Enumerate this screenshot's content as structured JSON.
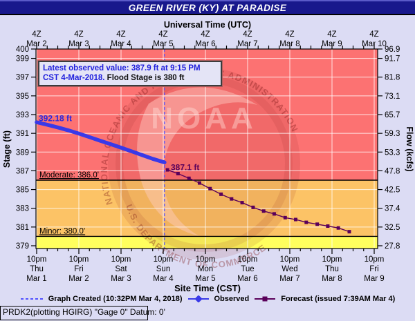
{
  "title": "GREEN RIVER (KY) AT PARADISE",
  "top_axis": {
    "label": "Universal Time (UTC)",
    "hour_label": "4Z",
    "ticks": [
      "Mar 2",
      "Mar 3",
      "Mar 4",
      "Mar 5",
      "Mar 6",
      "Mar 7",
      "Mar 8",
      "Mar 9",
      "Mar 10"
    ]
  },
  "bottom_axis": {
    "label": "Site Time (CST)",
    "time_label": "10pm",
    "ticks": [
      {
        "day": "Thu",
        "date": "Mar 1"
      },
      {
        "day": "Fri",
        "date": "Mar 2"
      },
      {
        "day": "Sat",
        "date": "Mar 3"
      },
      {
        "day": "Sun",
        "date": "Mar 4"
      },
      {
        "day": "Mon",
        "date": "Mar 5"
      },
      {
        "day": "Tue",
        "date": "Mar 6"
      },
      {
        "day": "Wed",
        "date": "Mar 7"
      },
      {
        "day": "Thu",
        "date": "Mar 8"
      },
      {
        "day": "Fri",
        "date": "Mar 9"
      }
    ]
  },
  "left_axis": {
    "label": "Stage (ft)",
    "ticks": [
      400,
      399,
      397,
      395,
      393,
      391,
      389,
      387,
      385,
      383,
      381,
      379
    ]
  },
  "right_axis": {
    "label": "Flow (kcfs)",
    "ticks": [
      "96.9",
      "91.7",
      "81.8",
      "73.1",
      "65.7",
      "59.3",
      "53.3",
      "47.8",
      "42.5",
      "37.4",
      "32.5",
      "27.8"
    ]
  },
  "annotation": {
    "line1": "Latest observed value: 387.9 ft at 9:15 PM",
    "line2_blue": "CST 4-Mar-2018.",
    "line2_black": " Flood Stage is 380 ft"
  },
  "labels": {
    "observed_start": "392.18 ft",
    "forecast_start": "387.1 ft",
    "moderate": "Moderate: 386.0'",
    "minor": "Minor: 380.0'"
  },
  "legend": [
    {
      "name": "graph-created",
      "label": "Graph Created (10:32PM Mar 4, 2018)"
    },
    {
      "name": "observed",
      "label": "Observed"
    },
    {
      "name": "forecast",
      "label": "Forecast (issued 7:39AM Mar 4)"
    }
  ],
  "status_bar": "PRDK2(plotting HGIRG) \"Gage 0\" Datum: 0'",
  "watermark": {
    "ring_top": "NATIONAL OCEANIC AND ATMOSPHERIC ADMINISTRATION",
    "ring_bottom": "U.S. DEPARTMENT OF COMMERCE",
    "center": "NOAA"
  },
  "colors": {
    "background": "#dcdcf4",
    "title_bar": "#18188c",
    "moderate_zone": "#fc7272",
    "minor_zone": "#fcc366",
    "action_zone": "#ffff5e",
    "observed": "#3939e8",
    "forecast": "#5a005a",
    "created_line": "#5151ff",
    "annotation_blue": "#2020dd",
    "gridline": "#ffffff"
  },
  "chart_data": {
    "type": "line",
    "title": "GREEN RIVER (KY) AT PARADISE",
    "x_unit": "days since 10pm CST Mar 1 2018",
    "xlabel_top": "Universal Time (UTC)",
    "xlabel_bottom": "Site Time (CST)",
    "ylabel_left": "Stage (ft)",
    "ylabel_right": "Flow (kcfs)",
    "stage_range": [
      379,
      400
    ],
    "stage_ticks": [
      400,
      399,
      397,
      395,
      393,
      391,
      389,
      387,
      385,
      383,
      381,
      379
    ],
    "flow_tick_labels": [
      "96.9",
      "91.7",
      "81.8",
      "73.1",
      "65.7",
      "59.3",
      "53.3",
      "47.8",
      "42.5",
      "37.4",
      "32.5",
      "27.8"
    ],
    "grid": true,
    "flood_zones": [
      {
        "name": "moderate-flood",
        "from": 386,
        "to": 400,
        "color": "#fc7272"
      },
      {
        "name": "minor-flood",
        "from": 380,
        "to": 386,
        "color": "#fcc366"
      },
      {
        "name": "action",
        "from": 379,
        "to": 380,
        "color": "#ffff5e"
      }
    ],
    "flood_stage_ft": 380,
    "moderate_stage_ft": 386,
    "latest_observed": {
      "stage_ft": 387.9,
      "time": "9:15 PM CST 4-Mar-2018"
    },
    "graph_created_x": 3.03,
    "series": [
      {
        "name": "Observed",
        "color": "#3939e8",
        "points": [
          [
            0,
            392.18
          ],
          [
            0.25,
            391.92
          ],
          [
            0.5,
            391.63
          ],
          [
            0.75,
            391.32
          ],
          [
            1.0,
            390.97
          ],
          [
            1.25,
            390.6
          ],
          [
            1.5,
            390.22
          ],
          [
            1.75,
            389.85
          ],
          [
            2.0,
            389.47
          ],
          [
            2.25,
            389.08
          ],
          [
            2.5,
            388.68
          ],
          [
            2.75,
            388.28
          ],
          [
            3.03,
            387.9
          ]
        ]
      },
      {
        "name": "Forecast",
        "color": "#5a005a",
        "points": [
          [
            3.1,
            387.1
          ],
          [
            3.35,
            386.7
          ],
          [
            3.61,
            386.2
          ],
          [
            3.86,
            385.7
          ],
          [
            4.11,
            385.1
          ],
          [
            4.37,
            384.5
          ],
          [
            4.62,
            384.0
          ],
          [
            4.87,
            383.6
          ],
          [
            5.13,
            383.1
          ],
          [
            5.38,
            382.7
          ],
          [
            5.63,
            382.4
          ],
          [
            5.89,
            382.0
          ],
          [
            6.14,
            381.8
          ],
          [
            6.39,
            381.5
          ],
          [
            6.65,
            381.3
          ],
          [
            6.9,
            381.1
          ],
          [
            7.15,
            380.9
          ],
          [
            7.41,
            380.5
          ]
        ]
      }
    ]
  }
}
